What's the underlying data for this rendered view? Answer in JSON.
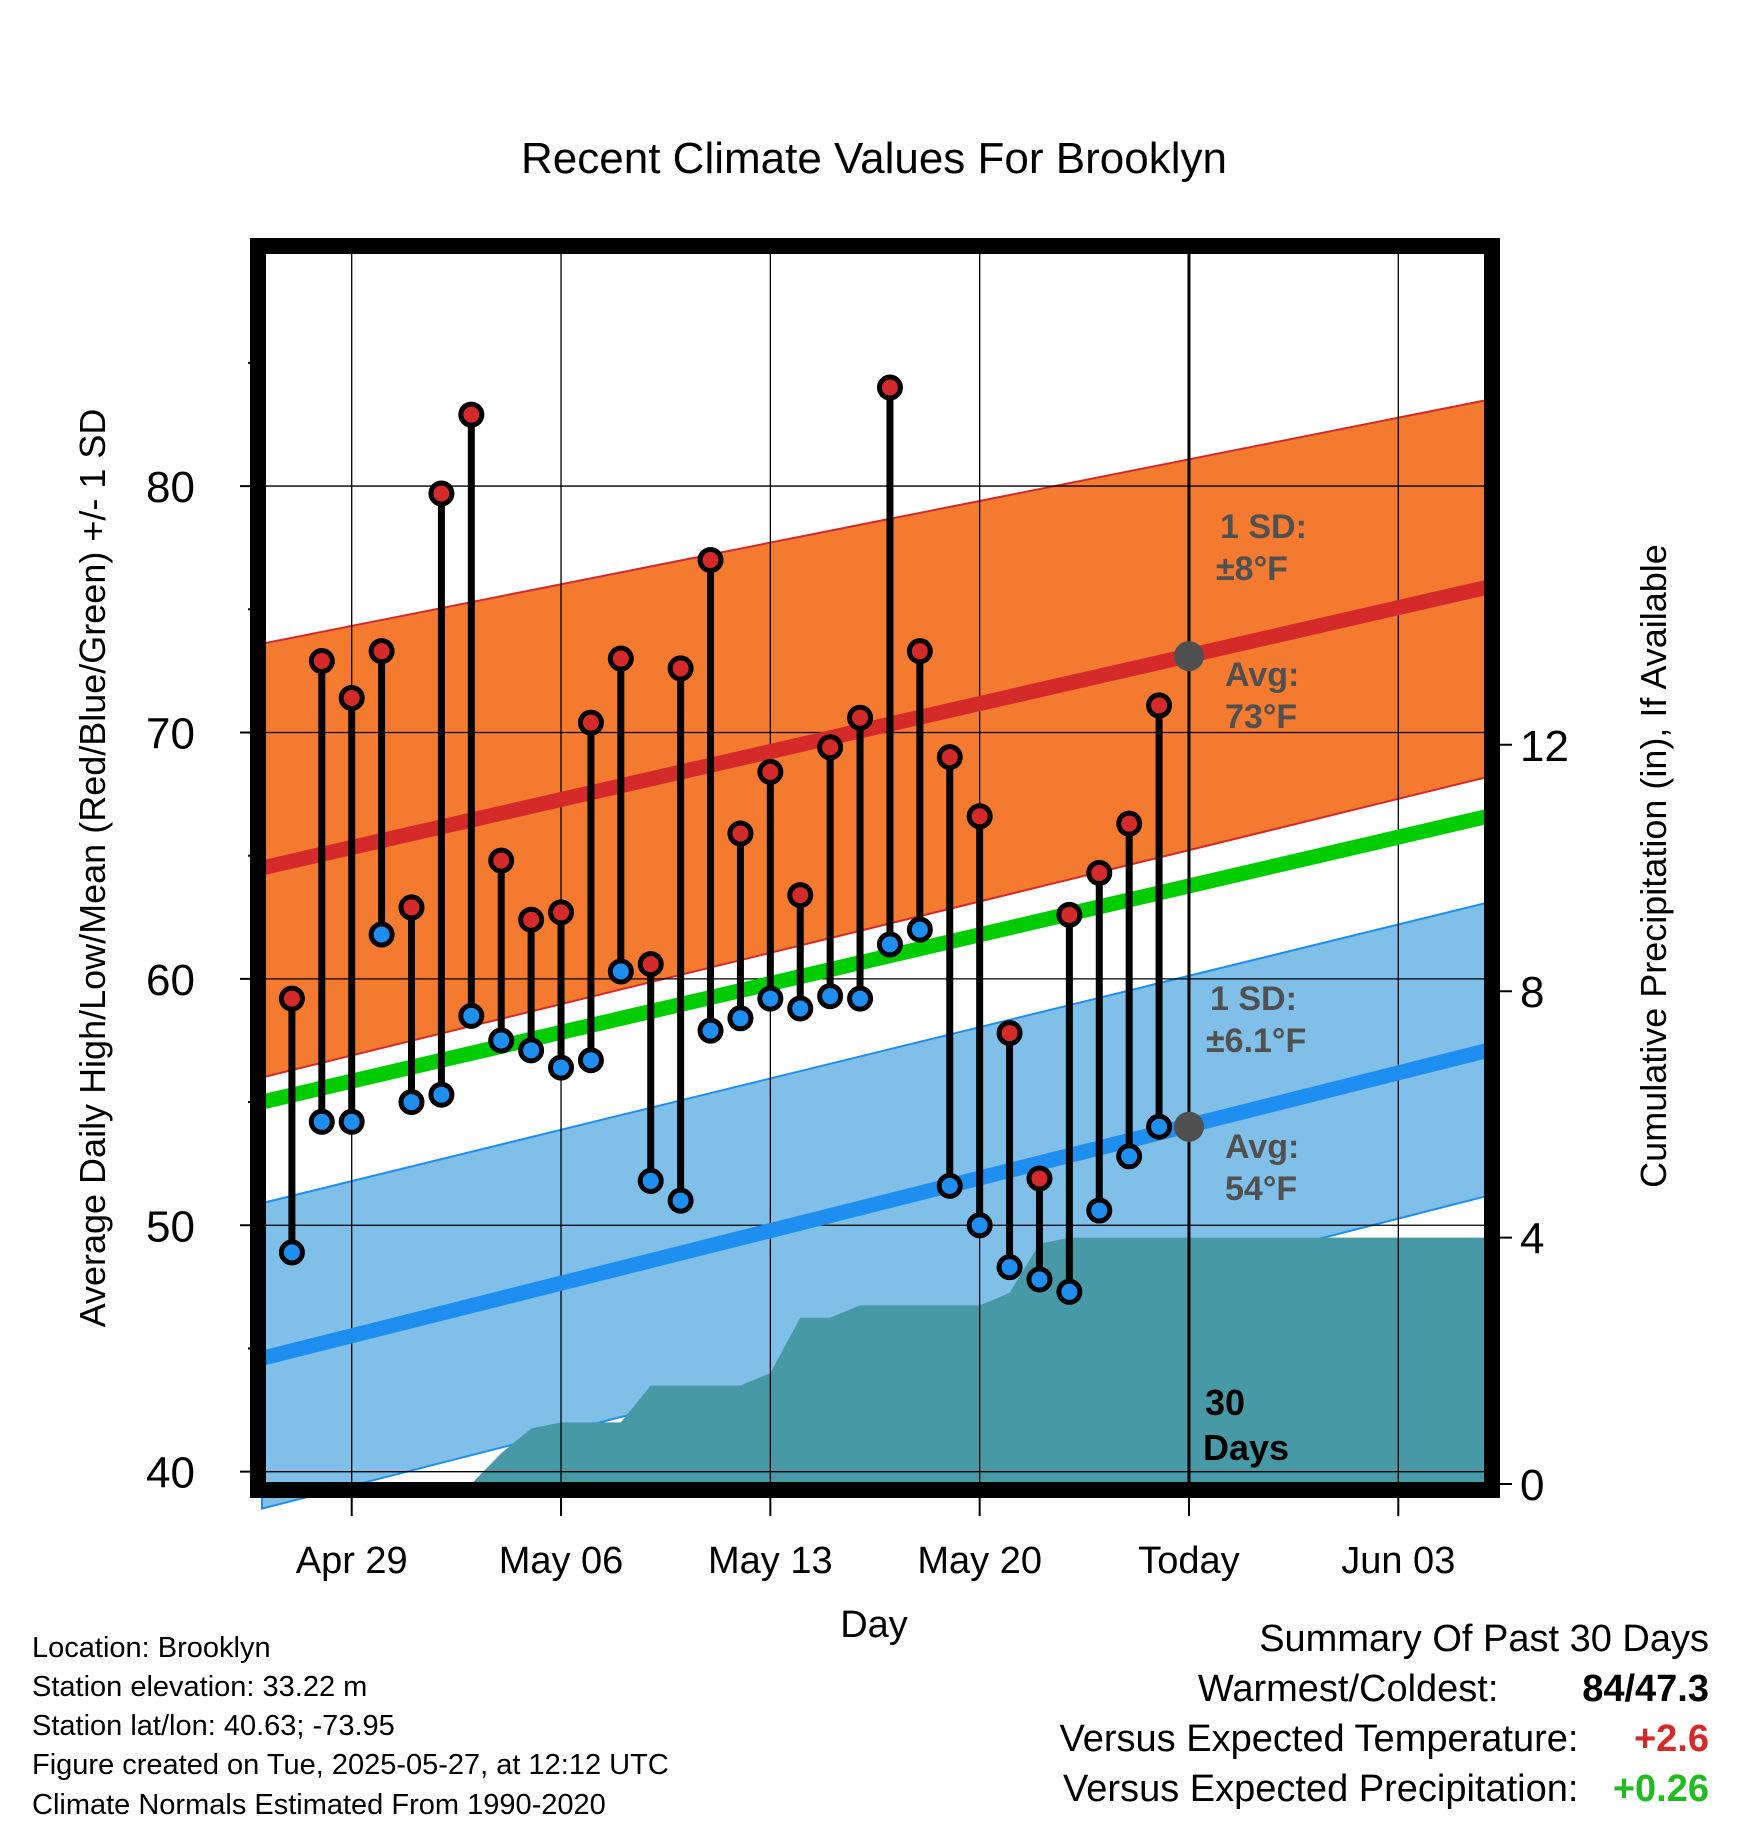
{
  "chart_data": {
    "type": "line",
    "title": "Recent Climate Values For Brooklyn",
    "xlabel": "Day",
    "ylabel": "Average Daily High/Low/Mean (Red/Blue/Green) +/- 1 SD",
    "y2label": "Cumulative Precipitation (in), If Available",
    "xlim": [
      "Apr 26",
      "Jun 06"
    ],
    "ylim": [
      39.5,
      89.5
    ],
    "y2lim": [
      0,
      20
    ],
    "x_ticks": [
      {
        "date": "Apr 29",
        "label": "Apr 29"
      },
      {
        "date": "May 06",
        "label": "May 06"
      },
      {
        "date": "May 13",
        "label": "May 13"
      },
      {
        "date": "May 20",
        "label": "May 20"
      },
      {
        "date": "May 27",
        "label": "Today"
      },
      {
        "date": "Jun 03",
        "label": "Jun 03"
      }
    ],
    "y_ticks": [
      40,
      50,
      60,
      70,
      80
    ],
    "y_minor_ticks": [
      45,
      55,
      65,
      75,
      85
    ],
    "y2_ticks": [
      0,
      4,
      8,
      12
    ],
    "grid": true,
    "today": "May 27",
    "normals": {
      "high_avg": {
        "start": 64.5,
        "end": 75.9,
        "color": "#d42a2a"
      },
      "high_sd_band": {
        "upper_start": 73.6,
        "upper_end": 83.5,
        "lower_start": 56.0,
        "lower_end": 68.2,
        "color": "#f47a30",
        "sd_label": "1 SD:",
        "sd_value": "±8°F"
      },
      "mean_avg": {
        "start": 55.0,
        "end": 66.6,
        "color": "#00cc00"
      },
      "low_avg": {
        "start": 44.6,
        "end": 57.1,
        "color": "#1e8ff0"
      },
      "low_sd_band": {
        "upper_start": 50.9,
        "upper_end": 63.1,
        "lower_start": 38.5,
        "lower_end": 51.2,
        "color": "#80c0e8",
        "sd_label": "1 SD:",
        "sd_value": "±6.1°F"
      },
      "today_high_avg": 73.1,
      "today_low_avg": 54.0,
      "high_avg_label": "Avg:",
      "high_avg_value": "73°F",
      "low_avg_label": "Avg:",
      "low_avg_value": "54°F"
    },
    "series": [
      {
        "name": "High",
        "color": "#d42a2a",
        "x": [
          "Apr 27",
          "Apr 28",
          "Apr 29",
          "Apr 30",
          "May 01",
          "May 02",
          "May 03",
          "May 04",
          "May 05",
          "May 06",
          "May 07",
          "May 08",
          "May 09",
          "May 10",
          "May 11",
          "May 12",
          "May 13",
          "May 14",
          "May 15",
          "May 16",
          "May 17",
          "May 18",
          "May 19",
          "May 20",
          "May 21",
          "May 22",
          "May 23",
          "May 24",
          "May 25",
          "May 26"
        ],
        "values": [
          59.2,
          72.9,
          71.4,
          73.3,
          62.9,
          79.7,
          82.9,
          64.8,
          62.4,
          62.7,
          70.4,
          73.0,
          60.6,
          72.6,
          77.0,
          65.9,
          68.4,
          63.4,
          69.4,
          70.6,
          84.0,
          73.3,
          69.0,
          66.6,
          57.8,
          51.9,
          62.6,
          64.3,
          66.3,
          71.1
        ]
      },
      {
        "name": "Low",
        "color": "#1e8ff0",
        "x": [
          "Apr 27",
          "Apr 28",
          "Apr 29",
          "Apr 30",
          "May 01",
          "May 02",
          "May 03",
          "May 04",
          "May 05",
          "May 06",
          "May 07",
          "May 08",
          "May 09",
          "May 10",
          "May 11",
          "May 12",
          "May 13",
          "May 14",
          "May 15",
          "May 16",
          "May 17",
          "May 18",
          "May 19",
          "May 20",
          "May 21",
          "May 22",
          "May 23",
          "May 24",
          "May 25",
          "May 26"
        ],
        "values": [
          48.9,
          54.2,
          54.2,
          61.8,
          55.0,
          55.3,
          58.5,
          57.5,
          57.1,
          56.4,
          56.7,
          60.3,
          51.8,
          51.0,
          57.9,
          58.4,
          59.2,
          58.8,
          59.3,
          59.2,
          61.4,
          62.0,
          51.6,
          50.0,
          48.3,
          47.8,
          47.3,
          50.6,
          52.8,
          54.0
        ]
      },
      {
        "name": "Cumulative Precipitation",
        "color": "#4899a6",
        "type": "area",
        "x": [
          "May 03",
          "May 04",
          "May 05",
          "May 06",
          "May 07",
          "May 08",
          "May 09",
          "May 10",
          "May 11",
          "May 12",
          "May 13",
          "May 14",
          "May 15",
          "May 16",
          "May 17",
          "May 18",
          "May 19",
          "May 20",
          "May 21",
          "May 22",
          "May 23",
          "May 24",
          "Jun 06"
        ],
        "values": [
          0,
          0.5,
          0.9,
          1.0,
          1.0,
          1.0,
          1.6,
          1.6,
          1.6,
          1.6,
          1.8,
          2.7,
          2.7,
          2.9,
          2.9,
          2.9,
          2.9,
          2.9,
          3.1,
          3.9,
          4.0,
          4.0,
          4.0
        ]
      }
    ],
    "precip_period_label": "30",
    "precip_period_unit": "Days"
  },
  "info": {
    "location": "Location: Brooklyn",
    "elevation": "Station elevation: 33.22 m",
    "latlon": "Station lat/lon: 40.63; -73.95",
    "created": "Figure created on Tue, 2025-05-27, at 12:12 UTC",
    "normals": "Climate Normals Estimated From 1990-2020"
  },
  "summary": {
    "title": "Summary Of Past 30 Days",
    "warmest_coldest_label": "Warmest/Coldest:",
    "warmest": "84",
    "coldest": "47.3",
    "temp_label": "Versus Expected Temperature:",
    "temp_value": "+2.6",
    "temp_color": "#d42a2a",
    "precip_label": "Versus Expected Precipitation:",
    "precip_value": "+0.26",
    "precip_color": "#22bb22"
  }
}
